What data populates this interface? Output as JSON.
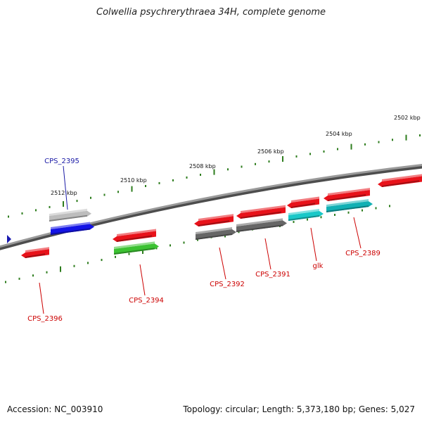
{
  "title": "Colwellia psychrerythraea 34H, complete genome",
  "footer": {
    "accession": "Accession: NC_003910",
    "stats": "Topology: circular; Length: 5,373,180 bp; Genes: 5,027"
  },
  "colors": {
    "backbone": "#7f7f7f",
    "tick": "#2e7d1e",
    "label_default": "#cc0000",
    "label_highlight": "#1a1aa6",
    "cds": "#e8121a",
    "selected": "#1414e6",
    "gray": "#bdbdbd",
    "dark_gray": "#666666",
    "green": "#3cc232",
    "cyan": "#19c8c8",
    "teal": "#12b0b4",
    "marker": "#1a1ab0"
  },
  "ruler": {
    "labels": [
      {
        "text": "2512 kbp"
      },
      {
        "text": "2510 kbp"
      },
      {
        "text": "2508 kbp"
      },
      {
        "text": "2506 kbp"
      },
      {
        "text": "2504 kbp"
      },
      {
        "text": "2502 kbp"
      }
    ]
  },
  "genes": [
    {
      "name": "CPS_2395",
      "color": "label_highlight"
    },
    {
      "name": "CPS_2396",
      "color": "label_default"
    },
    {
      "name": "CPS_2394",
      "color": "label_default"
    },
    {
      "name": "CPS_2392",
      "color": "label_default"
    },
    {
      "name": "CPS_2391",
      "color": "label_default"
    },
    {
      "name": "glk",
      "color": "label_default"
    },
    {
      "name": "CPS_2389",
      "color": "label_default"
    }
  ]
}
